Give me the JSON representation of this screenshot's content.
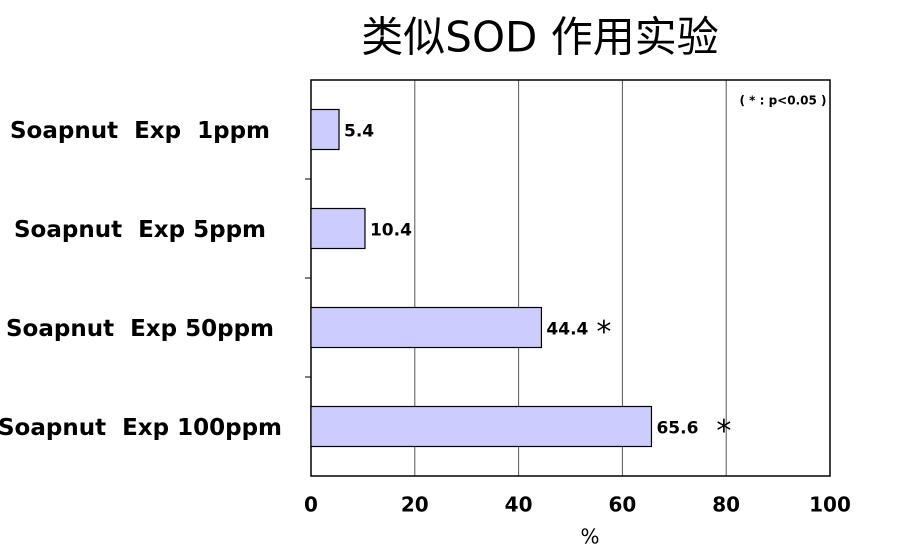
{
  "chart_data": {
    "type": "hbar",
    "title": "类似SOD 作用实验",
    "annotation": "( * : p<0.05 )",
    "x_label": "%",
    "categories": [
      "Soapnut  Exp  1ppm",
      "Soapnut  Exp 5ppm",
      "Soapnut  Exp 50ppm",
      "Soapnut  Exp 100ppm"
    ],
    "values": [
      5.4,
      10.4,
      44.4,
      65.6
    ],
    "markers": [
      null,
      null,
      "*",
      "*"
    ],
    "color": "#ccccff",
    "xlim": [
      0,
      100
    ],
    "xticks": [
      0,
      20,
      40,
      60,
      80,
      100
    ],
    "grid": true
  }
}
